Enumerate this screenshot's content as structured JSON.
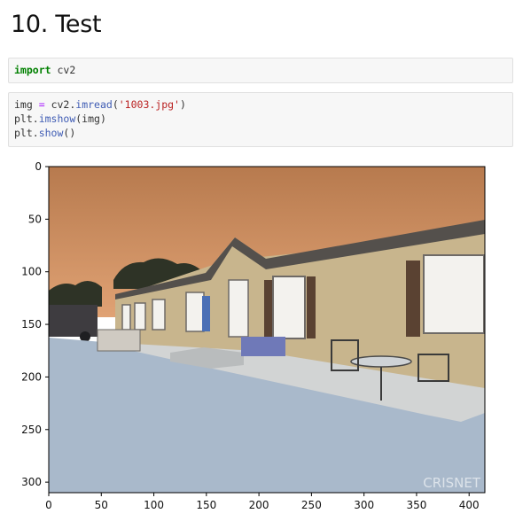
{
  "section": {
    "title": "10. Test"
  },
  "cells": [
    {
      "lines": [
        [
          {
            "t": "import",
            "c": "kw"
          },
          {
            "t": " cv2",
            "c": ""
          }
        ]
      ]
    },
    {
      "lines": [
        [
          {
            "t": "img ",
            "c": ""
          },
          {
            "t": "=",
            "c": "op"
          },
          {
            "t": " cv2.",
            "c": ""
          },
          {
            "t": "imread",
            "c": "fn"
          },
          {
            "t": "(",
            "c": ""
          },
          {
            "t": "'1003.jpg'",
            "c": "str"
          },
          {
            "t": ")",
            "c": ""
          }
        ],
        [
          {
            "t": "plt.",
            "c": ""
          },
          {
            "t": "imshow",
            "c": "fn"
          },
          {
            "t": "(img)",
            "c": ""
          }
        ],
        [
          {
            "t": "plt.",
            "c": ""
          },
          {
            "t": "show",
            "c": "fn"
          },
          {
            "t": "()",
            "c": ""
          }
        ]
      ]
    }
  ],
  "chart_data": {
    "type": "image",
    "xlim": [
      0,
      415
    ],
    "ylim": [
      310,
      0
    ],
    "x_ticks": [
      0,
      50,
      100,
      150,
      200,
      250,
      300,
      350,
      400
    ],
    "y_ticks": [
      0,
      50,
      100,
      150,
      200,
      250,
      300
    ],
    "watermark": "CRISNET",
    "image_colors": {
      "sky_top": "#b77a4e",
      "sky_bottom": "#e0a274",
      "house_siding": "#c8b58d",
      "roof": "#54504c",
      "trim": "#5a4232",
      "window": "#f3f2ee",
      "ground": "#a9b9cb",
      "concrete": "#d2d4d4",
      "tree": "#2e3326"
    }
  }
}
